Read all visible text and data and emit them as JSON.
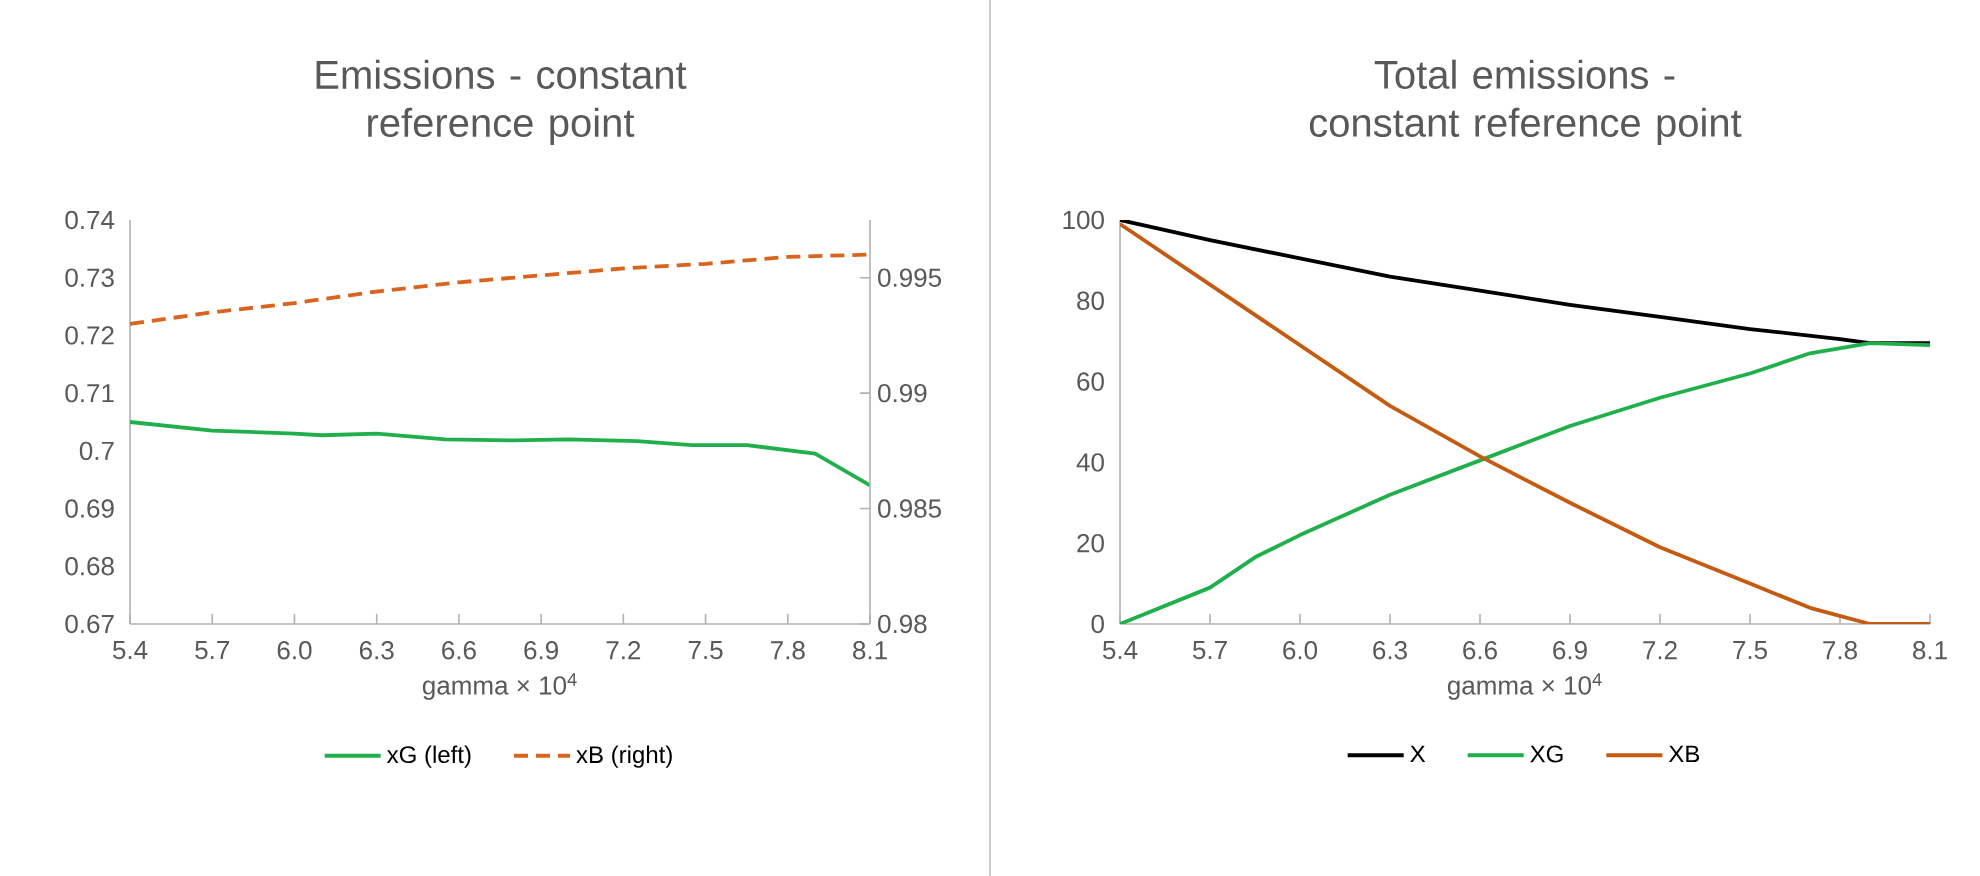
{
  "chart_data": [
    {
      "type": "line",
      "title": "Emissions - constant reference point",
      "xlabel": "gamma × 10$^{4}$",
      "xlim": [
        5.4,
        8.1
      ],
      "xticks": [
        5.4,
        5.7,
        {
          "value": 6,
          "label": "6.0"
        },
        6.3,
        6.6,
        6.9,
        7.2,
        7.5,
        7.8,
        8.1
      ],
      "ylim": [
        0.67,
        0.74
      ],
      "yticks": [
        0.67,
        0.68,
        0.69,
        0.7,
        0.71,
        0.72,
        0.73,
        0.74
      ],
      "y2lim": [
        0.98,
        0.9975
      ],
      "y2ticks": [
        0.98,
        0.985,
        0.99,
        0.995
      ],
      "legend": "bottom",
      "series": [
        {
          "name": "xG (left)",
          "color": "#1fb04c",
          "line_style": "solid",
          "x": [
            5.4,
            5.7,
            6.0,
            6.1,
            6.3,
            6.55,
            6.8,
            7.0,
            7.25,
            7.45,
            7.65,
            7.9,
            8.1
          ],
          "values": [
            0.705,
            0.7035,
            0.703,
            0.7027,
            0.703,
            0.702,
            0.7018,
            0.702,
            0.7017,
            0.701,
            0.701,
            0.6995,
            0.694
          ]
        },
        {
          "name": "xB (right)",
          "color": "#d9641e",
          "line_style": "dashed",
          "axis": "y2",
          "x": [
            5.4,
            5.7,
            6.0,
            6.3,
            6.6,
            6.9,
            7.2,
            7.5,
            7.8,
            8.1
          ],
          "values": [
            0.993,
            0.9935,
            0.9939,
            0.9944,
            0.9948,
            0.9951,
            0.9954,
            0.9956,
            0.9959,
            0.996
          ]
        }
      ]
    },
    {
      "type": "line",
      "title": "Total emissions - constant reference point",
      "xlabel": "gamma × 10$^{4}$",
      "xlim": [
        5.4,
        8.1
      ],
      "xticks": [
        5.4,
        5.7,
        {
          "value": 6,
          "label": "6.0"
        },
        6.3,
        6.6,
        6.9,
        7.2,
        7.5,
        7.8,
        8.1
      ],
      "ylim": [
        0,
        100
      ],
      "yticks": [
        0,
        20,
        40,
        60,
        80,
        100
      ],
      "legend": "bottom",
      "series": [
        {
          "name": "X",
          "color": "#000000",
          "line_style": "solid",
          "x": [
            5.4,
            5.7,
            6.0,
            6.3,
            6.6,
            6.9,
            7.2,
            7.5,
            7.8,
            7.9,
            8.1
          ],
          "values": [
            100,
            95,
            90.5,
            86,
            82.5,
            79,
            76,
            73,
            70.5,
            69.5,
            69.5
          ]
        },
        {
          "name": "XG",
          "color": "#1fb04c",
          "line_style": "solid",
          "x": [
            5.4,
            5.7,
            5.85,
            6.0,
            6.3,
            6.6,
            6.9,
            7.2,
            7.5,
            7.7,
            7.9,
            8.1
          ],
          "values": [
            0,
            9,
            16.5,
            22,
            32,
            40.5,
            49,
            56,
            62,
            67,
            69.5,
            69
          ]
        },
        {
          "name": "XB",
          "color": "#c55a11",
          "line_style": "solid",
          "x": [
            5.4,
            5.7,
            6.0,
            6.3,
            6.6,
            6.9,
            7.2,
            7.5,
            7.7,
            7.9,
            8.1
          ],
          "values": [
            99,
            84,
            69,
            54,
            41.5,
            30,
            19,
            10,
            4,
            0,
            0
          ]
        }
      ]
    }
  ]
}
